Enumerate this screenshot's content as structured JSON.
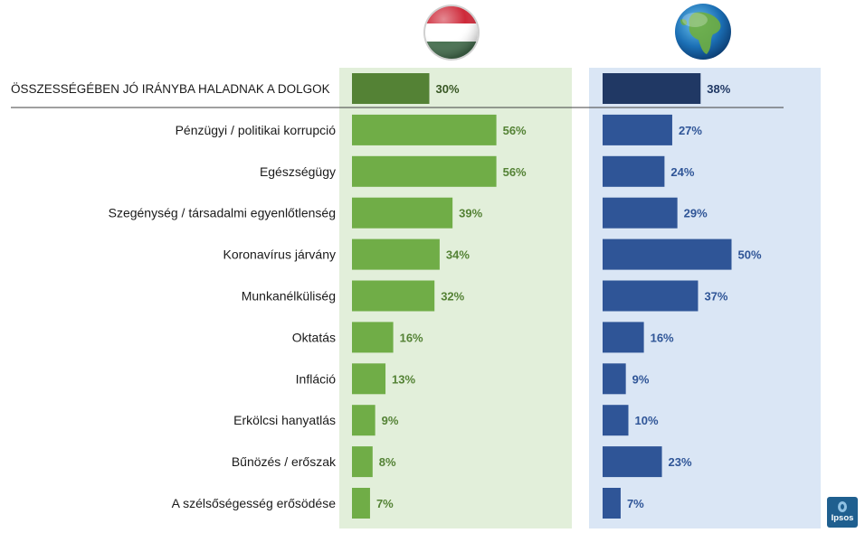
{
  "chart_data": {
    "type": "bar",
    "orientation": "horizontal",
    "categories": [
      "ÖSSZESSÉGÉBEN JÓ IRÁNYBA HALADNAK A DOLGOK",
      "Pénzügyi / politikai korrupció",
      "Egészségügy",
      "Szegénység / társadalmi egyenlőtlenség",
      "Koronavírus járvány",
      "Munkanélküliség",
      "Oktatás",
      "Infláció",
      "Erkölcsi hanyatlás",
      "Bűnözés / erőszak",
      "A szélsőségesség erősödése"
    ],
    "series": [
      {
        "name": "Hungary",
        "values": [
          30,
          56,
          56,
          39,
          34,
          32,
          16,
          13,
          9,
          8,
          7
        ],
        "labels": [
          "30%",
          "56%",
          "56%",
          "39%",
          "34%",
          "32%",
          "16%",
          "13%",
          "9%",
          "8%",
          "7%"
        ],
        "color": "#70ad47",
        "highlight_color": "#548235",
        "label_color": "#548235",
        "highlight_label_color": "#375623",
        "panel_color": "#e2efda"
      },
      {
        "name": "Global",
        "values": [
          38,
          27,
          24,
          29,
          50,
          37,
          16,
          9,
          10,
          23,
          7
        ],
        "labels": [
          "38%",
          "27%",
          "24%",
          "29%",
          "50%",
          "37%",
          "16%",
          "9%",
          "10%",
          "23%",
          "7%"
        ],
        "color": "#2f5597",
        "highlight_color": "#203864",
        "label_color": "#2f5597",
        "highlight_label_color": "#203864",
        "panel_color": "#dae6f5"
      }
    ],
    "title": "",
    "xlabel": "",
    "ylabel": "",
    "xlim": [
      0,
      100
    ]
  },
  "icons": {
    "hungary": "hungary-flag-icon",
    "global": "globe-icon"
  },
  "logo": {
    "text": "Ipsos"
  }
}
